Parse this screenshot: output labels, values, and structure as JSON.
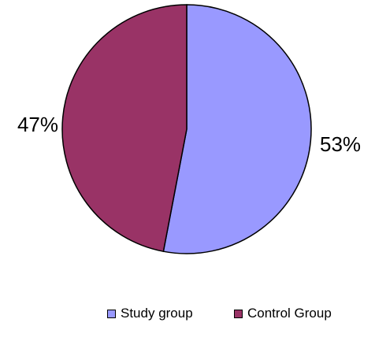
{
  "chart_data": {
    "type": "pie",
    "start_angle_deg": 0,
    "direction": "clockwise",
    "slices": [
      {
        "label": "Study group",
        "value": 53,
        "display": "53%",
        "color": "#9999ff"
      },
      {
        "label": "Control Group",
        "value": 47,
        "display": "47%",
        "color": "#993366"
      }
    ],
    "legend": {
      "position": "bottom",
      "entries": [
        "Study group",
        "Control Group"
      ]
    }
  }
}
